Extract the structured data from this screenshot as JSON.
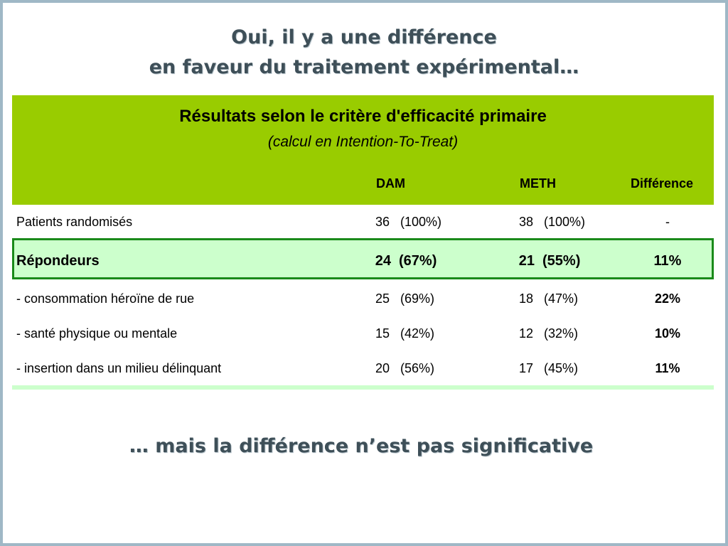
{
  "title": {
    "line1": "Oui, il y a une différence",
    "line2": "en faveur du traitement expérimental…"
  },
  "table": {
    "title": "Résultats selon le critère d'efficacité primaire",
    "subtitle": "(calcul en Intention-To-Treat)",
    "columns": [
      "DAM",
      "METH",
      "Différence"
    ],
    "rows": [
      {
        "label": "Patients randomisés",
        "dam_n": "36",
        "dam_pct": "(100%)",
        "meth_n": "38",
        "meth_pct": "(100%)",
        "diff": "-"
      },
      {
        "label": "Répondeurs",
        "dam_n": "24",
        "dam_pct": "(67%)",
        "meth_n": "21",
        "meth_pct": "(55%)",
        "diff": "11%"
      },
      {
        "label": "- consommation héroïne de rue",
        "dam_n": "25",
        "dam_pct": "(69%)",
        "meth_n": "18",
        "meth_pct": "(47%)",
        "diff": "22%"
      },
      {
        "label": "- santé physique ou mentale",
        "dam_n": "15",
        "dam_pct": "(42%)",
        "meth_n": "12",
        "meth_pct": "(32%)",
        "diff": "10%"
      },
      {
        "label": "- insertion dans un milieu délinquant",
        "dam_n": "20",
        "dam_pct": "(56%)",
        "meth_n": "17",
        "meth_pct": "(45%)",
        "diff": "11%"
      }
    ]
  },
  "conclusion": "… mais la différence n’est pas significative",
  "colors": {
    "header_green": "#99cc00",
    "highlight_green": "#ccffcc",
    "highlight_border": "#1a8a1a",
    "title_text": "#3e4f58",
    "frame": "#9fb8c6"
  }
}
